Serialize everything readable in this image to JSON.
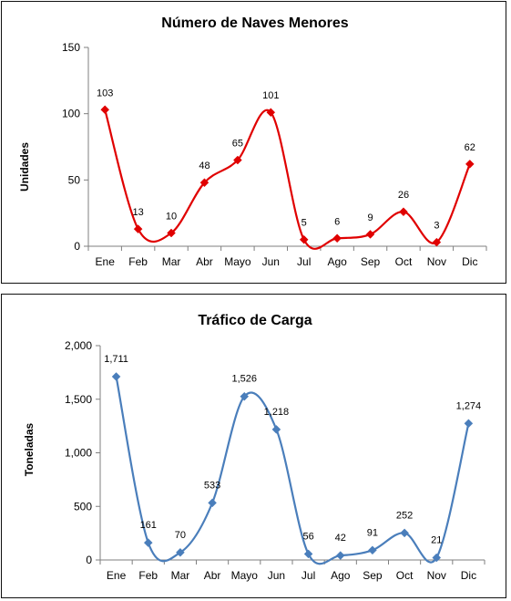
{
  "chart_data": [
    {
      "type": "line",
      "title": "Número de Naves Menores",
      "xlabel": "",
      "ylabel": "Unidades",
      "categories": [
        "Ene",
        "Feb",
        "Mar",
        "Abr",
        "Mayo",
        "Jun",
        "Jul",
        "Ago",
        "Sep",
        "Oct",
        "Nov",
        "Dic"
      ],
      "series": [
        {
          "values": [
            103,
            13,
            10,
            48,
            65,
            101,
            5,
            6,
            9,
            26,
            3,
            62
          ],
          "color": "#e00000",
          "marker": "diamond"
        }
      ],
      "data_labels": [
        "103",
        "13",
        "10",
        "48",
        "65",
        "101",
        "5",
        "6",
        "9",
        "26",
        "3",
        "62"
      ],
      "ylim": [
        0,
        150
      ],
      "yticks": [
        0,
        50,
        100,
        150
      ],
      "ytick_labels": [
        "0",
        "50",
        "100",
        "150"
      ],
      "smooth": true,
      "grid": false,
      "legend": "none"
    },
    {
      "type": "line",
      "title": "Tráfico de Carga",
      "xlabel": "",
      "ylabel": "Toneladas",
      "categories": [
        "Ene",
        "Feb",
        "Mar",
        "Abr",
        "Mayo",
        "Jun",
        "Jul",
        "Ago",
        "Sep",
        "Oct",
        "Nov",
        "Dic"
      ],
      "series": [
        {
          "values": [
            1711,
            161,
            70,
            533,
            1526,
            1218,
            56,
            42,
            91,
            252,
            21,
            1274
          ],
          "color": "#4a7ebb",
          "marker": "diamond"
        }
      ],
      "data_labels": [
        "1,711",
        "161",
        "70",
        "533",
        "1,526",
        "1,218",
        "56",
        "42",
        "91",
        "252",
        "21",
        "1,274"
      ],
      "ylim": [
        0,
        2000
      ],
      "yticks": [
        0,
        500,
        1000,
        1500,
        2000
      ],
      "ytick_labels": [
        "0",
        "500",
        "1,000",
        "1,500",
        "2,000"
      ],
      "smooth": true,
      "grid": false,
      "legend": "none"
    }
  ]
}
